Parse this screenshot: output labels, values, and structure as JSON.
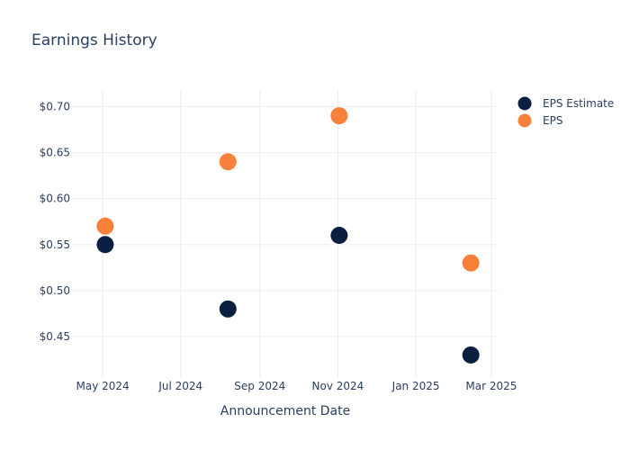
{
  "chart_data": {
    "type": "scatter",
    "title": "Earnings History",
    "xlabel": "Announcement Date",
    "ylabel": "",
    "x_ticks": [
      {
        "date": "2024-05-01",
        "label": "May 2024"
      },
      {
        "date": "2024-07-01",
        "label": "Jul 2024"
      },
      {
        "date": "2024-09-01",
        "label": "Sep 2024"
      },
      {
        "date": "2024-11-01",
        "label": "Nov 2024"
      },
      {
        "date": "2025-01-01",
        "label": "Jan 2025"
      },
      {
        "date": "2025-03-01",
        "label": "Mar 2025"
      }
    ],
    "y_ticks": [
      {
        "value": 0.45,
        "label": "$0.45"
      },
      {
        "value": 0.5,
        "label": "$0.50"
      },
      {
        "value": 0.55,
        "label": "$0.55"
      },
      {
        "value": 0.6,
        "label": "$0.60"
      },
      {
        "value": 0.65,
        "label": "$0.65"
      },
      {
        "value": 0.7,
        "label": "$0.70"
      }
    ],
    "xlim": [
      "2024-04-07",
      "2025-03-06"
    ],
    "ylim": [
      0.405,
      0.718
    ],
    "grid": true,
    "legend_position": "top-right",
    "series": [
      {
        "name": "EPS Estimate",
        "color": "#0b1f40",
        "points": [
          {
            "x": "2024-05-03",
            "y": 0.55
          },
          {
            "x": "2024-08-07",
            "y": 0.48
          },
          {
            "x": "2024-11-02",
            "y": 0.56
          },
          {
            "x": "2025-02-13",
            "y": 0.43
          }
        ]
      },
      {
        "name": "EPS",
        "color": "#f7813a",
        "points": [
          {
            "x": "2024-05-03",
            "y": 0.57
          },
          {
            "x": "2024-08-07",
            "y": 0.64
          },
          {
            "x": "2024-11-02",
            "y": 0.69
          },
          {
            "x": "2025-02-13",
            "y": 0.53
          }
        ]
      }
    ]
  }
}
